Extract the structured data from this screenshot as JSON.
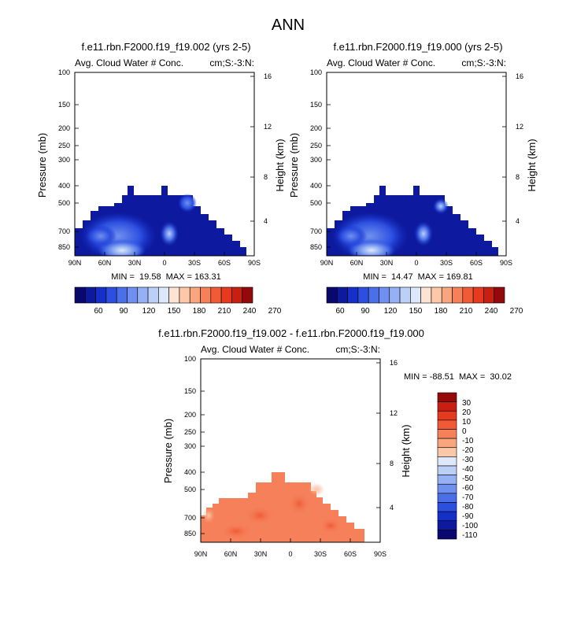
{
  "figure": {
    "title": "ANN"
  },
  "colors": {
    "cold": [
      "#08086e",
      "#0d1aa0",
      "#1530c8",
      "#2c4fe0",
      "#4a6fe8",
      "#6f90ee",
      "#95b1f3",
      "#bcd0f7",
      "#dde9fb"
    ],
    "warm": [
      "#fde4d2",
      "#fcc8a8",
      "#f9a67e",
      "#f5805a",
      "#f05a36",
      "#e53a1e",
      "#c81f12",
      "#96090a"
    ]
  },
  "panels": [
    {
      "title": "f.e11.rbn.F2000.f19_f19.002 (yrs 2-5)",
      "left_string": "Avg. Cloud Water # Conc.",
      "right_string": "cm;S:-3:N:",
      "stats": "MIN =  19.58  MAX = 163.31",
      "colorbar_labels": [
        "60",
        "90",
        "120",
        "150",
        "180",
        "210",
        "240",
        "270"
      ]
    },
    {
      "title": "f.e11.rbn.F2000.f19_f19.000 (yrs 2-5)",
      "left_string": "Avg. Cloud Water # Conc.",
      "right_string": "cm;S:-3:N:",
      "stats": "MIN =  14.47  MAX = 169.81",
      "colorbar_labels": [
        "60",
        "90",
        "120",
        "150",
        "180",
        "210",
        "240",
        "270"
      ]
    },
    {
      "title": "f.e11.rbn.F2000.f19_f19.002 - f.e11.rbn.F2000.f19_f19.000",
      "left_string": "Avg. Cloud Water # Conc.",
      "right_string": "cm;S:-3:N:",
      "stats": "MIN = -88.51  MAX =  30.02",
      "colorbar_labels": [
        "30",
        "20",
        "10",
        "0",
        "-10",
        "-20",
        "-30",
        "-40",
        "-50",
        "-60",
        "-70",
        "-80",
        "-90",
        "-100",
        "-110"
      ]
    }
  ],
  "chart_data": [
    {
      "type": "heatmap",
      "title": "f.e11.rbn.F2000.f19_f19.002 (yrs 2-5)",
      "xlabel": "",
      "ylabel": "Pressure (mb)",
      "ylabel_right": "Height (km)",
      "x_ticks": [
        "90N",
        "60N",
        "30N",
        "0",
        "30S",
        "60S",
        "90S"
      ],
      "x_range": [
        90,
        -90
      ],
      "y_ticks": [
        100,
        150,
        200,
        250,
        300,
        400,
        500,
        700,
        850
      ],
      "y_range": [
        100,
        1000
      ],
      "y_scale": "log",
      "y_right_ticks": [
        16,
        12,
        8,
        4
      ],
      "min": 19.58,
      "max": 163.31,
      "colorbar_levels": [
        60,
        90,
        120,
        150,
        180,
        210,
        240,
        270
      ]
    },
    {
      "type": "heatmap",
      "title": "f.e11.rbn.F2000.f19_f19.000 (yrs 2-5)",
      "xlabel": "",
      "ylabel": "Pressure (mb)",
      "ylabel_right": "Height (km)",
      "x_ticks": [
        "90N",
        "60N",
        "30N",
        "0",
        "30S",
        "60S",
        "90S"
      ],
      "x_range": [
        90,
        -90
      ],
      "y_ticks": [
        100,
        150,
        200,
        250,
        300,
        400,
        500,
        700,
        850
      ],
      "y_range": [
        100,
        1000
      ],
      "y_scale": "log",
      "y_right_ticks": [
        16,
        12,
        8,
        4
      ],
      "min": 14.47,
      "max": 169.81,
      "colorbar_levels": [
        60,
        90,
        120,
        150,
        180,
        210,
        240,
        270
      ]
    },
    {
      "type": "heatmap",
      "title": "f.e11.rbn.F2000.f19_f19.002 - f.e11.rbn.F2000.f19_f19.000",
      "xlabel": "",
      "ylabel": "Pressure (mb)",
      "ylabel_right": "Height (km)",
      "x_ticks": [
        "90N",
        "60N",
        "30N",
        "0",
        "30S",
        "60S",
        "90S"
      ],
      "x_range": [
        90,
        -90
      ],
      "y_ticks": [
        100,
        150,
        200,
        250,
        300,
        400,
        500,
        700,
        850
      ],
      "y_range": [
        100,
        1000
      ],
      "y_scale": "log",
      "y_right_ticks": [
        16,
        12,
        8,
        4
      ],
      "min": -88.51,
      "max": 30.02,
      "colorbar_levels": [
        30,
        20,
        10,
        0,
        -10,
        -20,
        -30,
        -40,
        -50,
        -60,
        -70,
        -80,
        -90,
        -100,
        -110
      ]
    }
  ]
}
